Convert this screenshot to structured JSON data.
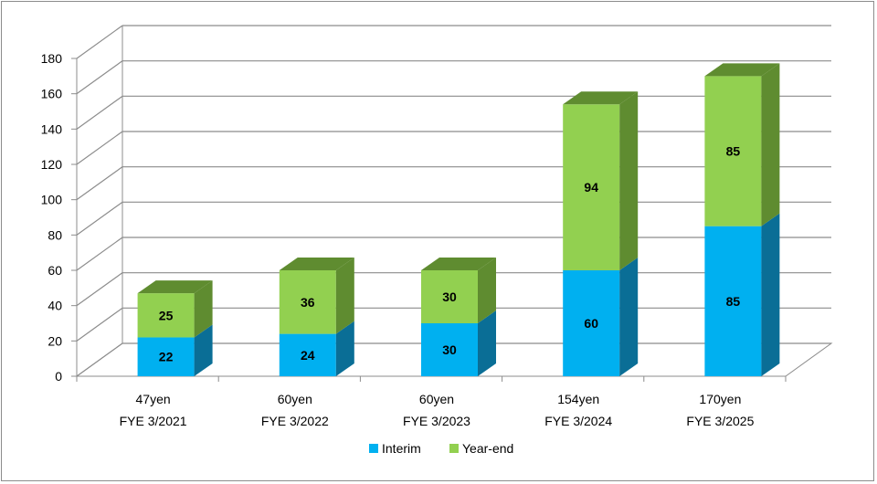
{
  "chart_data": {
    "type": "bar",
    "stacked": true,
    "three_d": true,
    "categories": [
      [
        "47yen",
        "FYE 3/2021"
      ],
      [
        "60yen",
        "FYE 3/2022"
      ],
      [
        "60yen",
        "FYE 3/2023"
      ],
      [
        "154yen",
        "FYE 3/2024"
      ],
      [
        "170yen",
        "FYE 3/2025"
      ]
    ],
    "series": [
      {
        "name": "Interim",
        "values": [
          22,
          24,
          30,
          60,
          85
        ],
        "color": "#00b0f0",
        "side_color": "#0a6e96",
        "top_color": "#0a6e96"
      },
      {
        "name": "Year-end",
        "values": [
          25,
          36,
          30,
          94,
          85
        ],
        "color": "#92d050",
        "side_color": "#5f8c30",
        "top_color": "#5f8c30"
      }
    ],
    "ylim": [
      0,
      180
    ],
    "yticks": [
      0,
      20,
      40,
      60,
      80,
      100,
      120,
      140,
      160,
      180
    ],
    "grid": true,
    "legend": "bottom",
    "title": "",
    "xlabel": "",
    "ylabel": ""
  }
}
